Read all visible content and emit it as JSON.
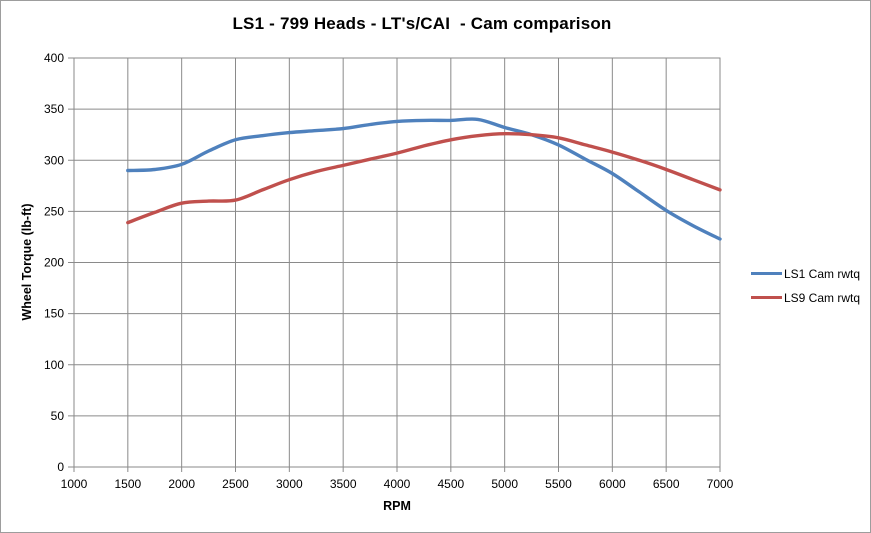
{
  "window": {
    "background": "#ffffff",
    "frame_border_color": "#9d9d9d"
  },
  "chart_data": {
    "type": "line",
    "title": "LS1 - 799 Heads - LT's/CAI  - Cam comparison",
    "xlabel": "RPM",
    "ylabel": "Wheel Torque (lb-ft)",
    "xlim": [
      1000,
      7000
    ],
    "ylim": [
      0,
      400
    ],
    "x_ticks": [
      1000,
      1500,
      2000,
      2500,
      3000,
      3500,
      4000,
      4500,
      5000,
      5500,
      6000,
      6500,
      7000
    ],
    "y_ticks": [
      0,
      50,
      100,
      150,
      200,
      250,
      300,
      350,
      400
    ],
    "grid": true,
    "grid_color": "#8a8a8a",
    "axis_text_color": "#000000",
    "legend_position": "right",
    "x": [
      1500,
      1750,
      2000,
      2250,
      2500,
      2750,
      3000,
      3250,
      3500,
      3750,
      4000,
      4250,
      4500,
      4750,
      5000,
      5250,
      5500,
      5750,
      6000,
      6250,
      6500,
      6750,
      7000
    ],
    "series": [
      {
        "name": "LS1 Cam rwtq",
        "color": "#4f81bd",
        "values": [
          290,
          291,
          296,
          309,
          320,
          324,
          327,
          329,
          331,
          335,
          338,
          339,
          339,
          340,
          332,
          325,
          315,
          301,
          287,
          269,
          251,
          236,
          223
        ]
      },
      {
        "name": "LS9 Cam rwtq",
        "color": "#c0504d",
        "values": [
          239,
          249,
          258,
          260,
          261,
          271,
          281,
          289,
          295,
          301,
          307,
          314,
          320,
          324,
          326,
          325,
          322,
          315,
          308,
          300,
          291,
          281,
          271
        ]
      }
    ]
  }
}
